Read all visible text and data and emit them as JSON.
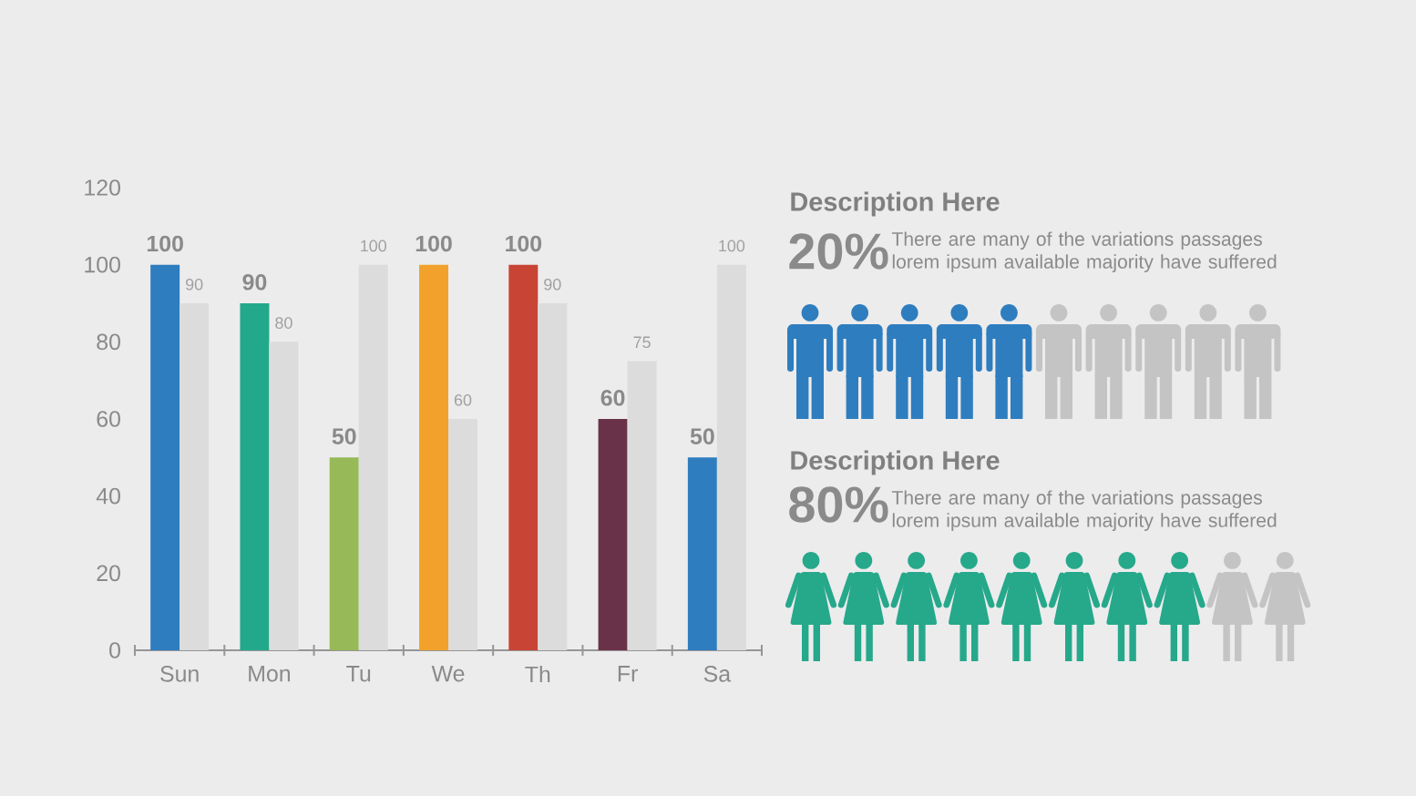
{
  "chart_data": [
    {
      "type": "bar",
      "categories": [
        "Sun",
        "Mon",
        "Tu",
        "We",
        "Th",
        "Fr",
        "Sa"
      ],
      "series": [
        {
          "colors": [
            "#2e7dbf",
            "#22a98c",
            "#97b957",
            "#f2a22c",
            "#c84536",
            "#6a3248",
            "#2e7dbf"
          ],
          "values": [
            100,
            90,
            50,
            100,
            100,
            60,
            50
          ]
        },
        {
          "color": "#dcdcdc",
          "values": [
            90,
            80,
            100,
            60,
            90,
            75,
            100
          ]
        }
      ],
      "ylim": [
        0,
        120
      ],
      "yticks": [
        0,
        20,
        40,
        60,
        80,
        100,
        120
      ],
      "data_labels": true
    },
    {
      "type": "other",
      "title": "Description Here",
      "annotations": [
        "20%",
        "There are many of the variations passages lorem ipsum available majority have suffered"
      ],
      "colors": [
        "#2e7dbf",
        "#2e7dbf",
        "#2e7dbf",
        "#2e7dbf",
        "#2e7dbf",
        "#c4c4c4",
        "#c4c4c4",
        "#c4c4c4",
        "#c4c4c4",
        "#c4c4c4"
      ]
    },
    {
      "type": "other",
      "title": "Description Here",
      "annotations": [
        "80%",
        "There are many of the variations passages lorem ipsum available majority have suffered"
      ],
      "colors": [
        "#26a88b",
        "#26a88b",
        "#26a88b",
        "#26a88b",
        "#26a88b",
        "#26a88b",
        "#26a88b",
        "#26a88b",
        "#c4c4c4",
        "#c4c4c4"
      ]
    }
  ]
}
